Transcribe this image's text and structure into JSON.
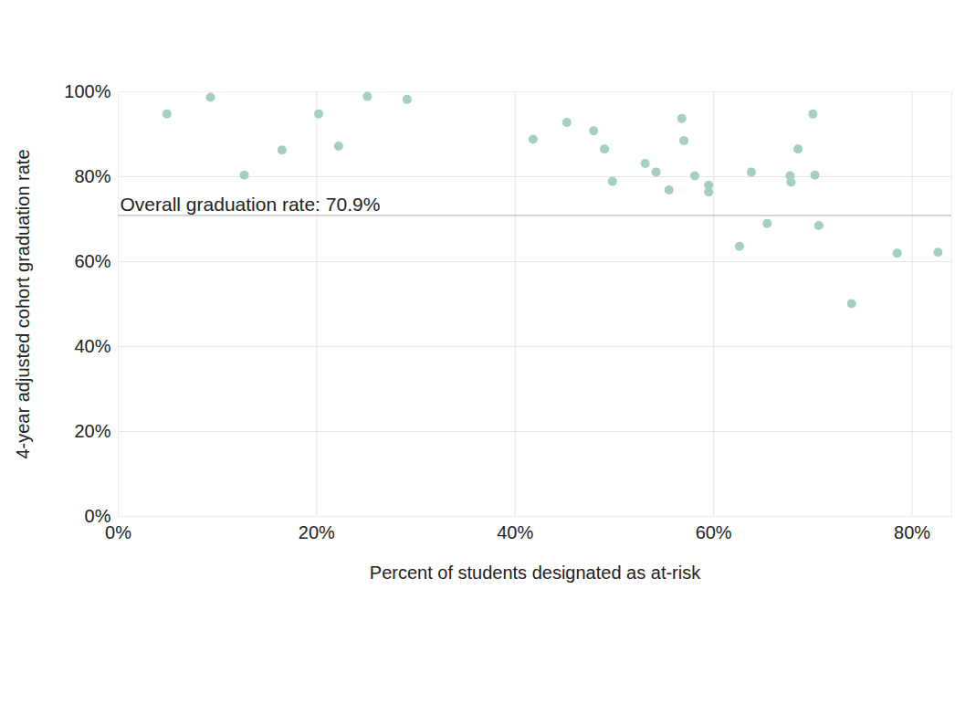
{
  "chart_data": {
    "type": "scatter",
    "x_label": "Percent of students designated as at-risk",
    "y_label": "4-year adjusted cohort graduation rate",
    "x": [
      4.9,
      9.3,
      12.7,
      16.5,
      20.2,
      22.2,
      25.1,
      29.1,
      41.8,
      45.2,
      47.9,
      49.0,
      49.8,
      53.1,
      54.2,
      55.5,
      56.8,
      57.0,
      58.1,
      59.5,
      59.5,
      62.6,
      63.8,
      65.4,
      67.7,
      67.8,
      68.5,
      70.0,
      70.2,
      70.6,
      73.9,
      78.5,
      82.6
    ],
    "values": [
      94.8,
      98.7,
      80.4,
      86.3,
      94.8,
      87.2,
      98.9,
      98.2,
      88.8,
      92.8,
      90.8,
      86.5,
      78.9,
      83.1,
      81.1,
      76.9,
      93.7,
      88.5,
      80.2,
      78.0,
      76.4,
      63.6,
      81.1,
      69.0,
      80.2,
      78.7,
      86.5,
      94.8,
      80.4,
      68.5,
      50.1,
      62.0,
      62.2
    ],
    "color": "#a3cfc4",
    "xlim": [
      0,
      84
    ],
    "xticks": [
      {
        "value": 0,
        "label": "0%"
      },
      {
        "value": 20,
        "label": "20%"
      },
      {
        "value": 40,
        "label": "40%"
      },
      {
        "value": 60,
        "label": "60%"
      },
      {
        "value": 80,
        "label": "80%"
      }
    ],
    "ylim": [
      0,
      100
    ],
    "yticks": [
      {
        "value": 0,
        "label": "0%"
      },
      {
        "value": 20,
        "label": "20%"
      },
      {
        "value": 40,
        "label": "40%"
      },
      {
        "value": 60,
        "label": "60%"
      },
      {
        "value": 80,
        "label": "80%"
      },
      {
        "value": 100,
        "label": "100%"
      }
    ],
    "reference_line": {
      "value": 70.9,
      "label": "Overall graduation rate: 70.9%"
    },
    "grid": true
  }
}
